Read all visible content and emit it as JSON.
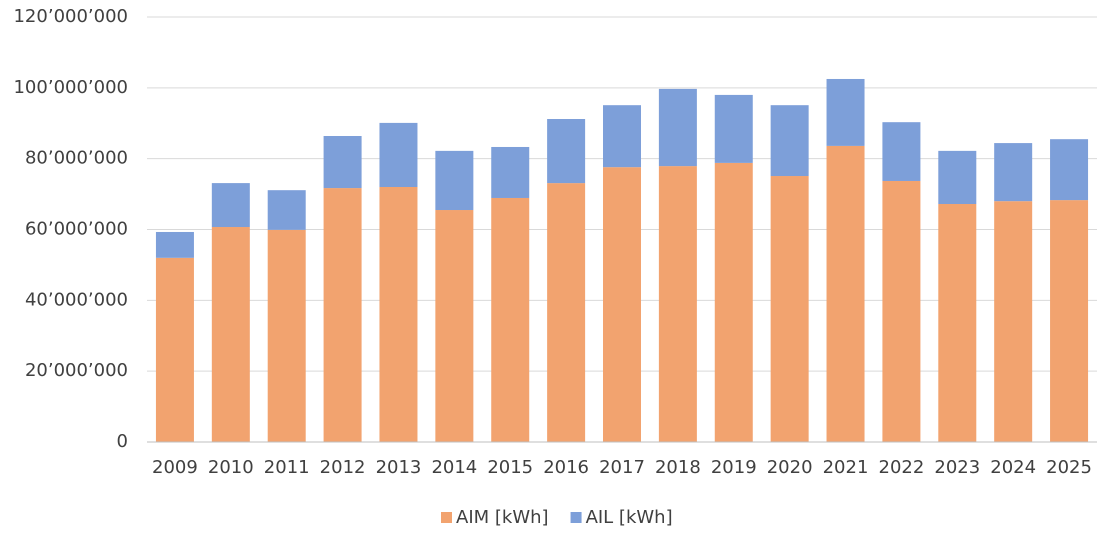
{
  "chart_data": {
    "type": "stacked_bar",
    "categories": [
      "2009",
      "2010",
      "2011",
      "2012",
      "2013",
      "2014",
      "2015",
      "2016",
      "2017",
      "2018",
      "2019",
      "2020",
      "2021",
      "2022",
      "2023",
      "2024",
      "2025"
    ],
    "series": [
      {
        "name": "AIM [kWh]",
        "color": "#f2a36f",
        "values": [
          52000000,
          60700000,
          59900000,
          71700000,
          72000000,
          65500000,
          68900000,
          73100000,
          77600000,
          77900000,
          78800000,
          75100000,
          83600000,
          73700000,
          67200000,
          68000000,
          68300000
        ]
      },
      {
        "name": "AIL [kWh]",
        "color": "#7d9fd9",
        "values": [
          7300000,
          12400000,
          11200000,
          14700000,
          18100000,
          16700000,
          14400000,
          18100000,
          17500000,
          21800000,
          19200000,
          20000000,
          18900000,
          16600000,
          15000000,
          16400000,
          17200000
        ]
      }
    ],
    "ylim": [
      0,
      120000000
    ],
    "yticks": [
      0,
      {
        "value": 20000000,
        "label": "20’000’000"
      },
      {
        "value": 40000000,
        "label": "40’000’000"
      },
      {
        "value": 60000000,
        "label": "60’000’000"
      },
      {
        "value": 80000000,
        "label": "80’000’000"
      },
      {
        "value": 100000000,
        "label": "100’000’000"
      },
      {
        "value": 120000000,
        "label": "120’000’000"
      }
    ],
    "grid": true,
    "legend": "bottom"
  }
}
